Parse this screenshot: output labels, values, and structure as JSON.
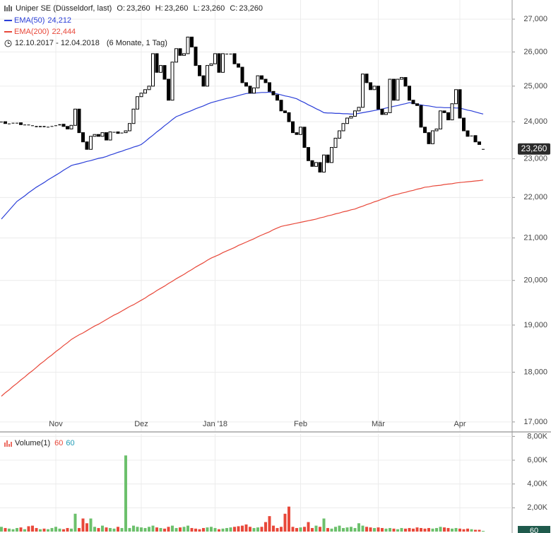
{
  "chart_data": [
    {
      "type": "candlestick",
      "title": "Uniper SE (Düsseldorf, last)",
      "quote": [
        {
          "label": "O:",
          "value": "23,260"
        },
        {
          "label": "H:",
          "value": "23,260"
        },
        {
          "label": "L:",
          "value": "23,260"
        },
        {
          "label": "C:",
          "value": "23,260"
        }
      ],
      "date_range": "12.10.2017 - 12.04.2018",
      "period": "(6 Monate, 1 Tag)",
      "categories": [
        null,
        null,
        null,
        null,
        null,
        null,
        null,
        null,
        null,
        null,
        null,
        null,
        null,
        null,
        "Nov",
        null,
        null,
        null,
        null,
        null,
        null,
        null,
        null,
        null,
        null,
        null,
        null,
        null,
        null,
        null,
        null,
        null,
        null,
        null,
        null,
        null,
        "Dez",
        null,
        null,
        null,
        null,
        null,
        null,
        null,
        null,
        null,
        null,
        null,
        null,
        null,
        null,
        null,
        null,
        null,
        null,
        "Jan '18",
        null,
        null,
        null,
        null,
        null,
        null,
        null,
        null,
        null,
        null,
        null,
        null,
        null,
        null,
        null,
        null,
        null,
        null,
        null,
        null,
        null,
        "Feb",
        null,
        null,
        null,
        null,
        null,
        null,
        null,
        null,
        null,
        null,
        null,
        null,
        null,
        null,
        null,
        null,
        null,
        null,
        null,
        "Mär",
        null,
        null,
        null,
        null,
        null,
        null,
        null,
        null,
        null,
        null,
        null,
        null,
        null,
        null,
        null,
        null,
        null,
        null,
        null,
        null,
        "Apr",
        null,
        null,
        null,
        null,
        null,
        null
      ],
      "open": [
        23.98,
        24.0,
        23.95,
        23.95,
        23.97,
        23.97,
        23.92,
        23.92,
        23.9,
        23.88,
        23.85,
        23.88,
        23.85,
        23.86,
        23.88,
        23.9,
        23.93,
        23.87,
        23.8,
        23.9,
        24.35,
        23.7,
        23.45,
        23.25,
        23.6,
        23.65,
        23.6,
        23.7,
        23.5,
        23.72,
        23.72,
        23.68,
        23.7,
        23.75,
        23.95,
        24.35,
        24.7,
        24.8,
        24.9,
        25.0,
        25.95,
        25.4,
        25.6,
        25.2,
        24.6,
        25.7,
        26.1,
        25.9,
        25.95,
        26.45,
        26.15,
        25.6,
        25.3,
        25.0,
        25.6,
        25.65,
        25.95,
        25.4,
        25.95,
        25.95,
        25.95,
        25.65,
        25.55,
        25.1,
        25.0,
        24.8,
        24.95,
        25.3,
        25.2,
        25.1,
        24.85,
        24.75,
        24.6,
        24.3,
        24.25,
        24.0,
        23.7,
        23.65,
        23.85,
        23.3,
        22.95,
        22.8,
        22.9,
        22.65,
        23.1,
        22.9,
        23.3,
        23.55,
        23.75,
        23.95,
        24.1,
        24.15,
        24.3,
        24.4,
        25.35,
        25.1,
        24.9,
        25.0,
        24.35,
        24.2,
        24.25,
        25.2,
        24.6,
        25.2,
        25.25,
        25.0,
        24.6,
        24.5,
        24.45,
        23.85,
        23.7,
        23.4,
        23.75,
        23.8,
        24.3,
        24.25,
        24.05,
        24.5,
        24.9,
        24.1,
        23.75,
        23.6,
        23.62,
        23.45,
        23.26
      ],
      "close": [
        24.0,
        23.95,
        23.95,
        23.97,
        23.97,
        23.92,
        23.92,
        23.9,
        23.88,
        23.85,
        23.88,
        23.85,
        23.86,
        23.88,
        23.9,
        23.93,
        23.87,
        23.8,
        23.9,
        24.35,
        23.7,
        23.45,
        23.25,
        23.6,
        23.65,
        23.6,
        23.7,
        23.5,
        23.72,
        23.72,
        23.68,
        23.7,
        23.75,
        23.95,
        24.35,
        24.7,
        24.8,
        24.9,
        25.0,
        25.95,
        25.4,
        25.6,
        25.2,
        24.6,
        25.7,
        26.1,
        25.9,
        25.95,
        26.45,
        26.15,
        25.6,
        25.3,
        25.0,
        25.6,
        25.65,
        25.95,
        25.4,
        25.95,
        25.95,
        25.95,
        25.65,
        25.55,
        25.1,
        25.0,
        24.8,
        24.95,
        25.3,
        25.2,
        25.1,
        24.85,
        24.75,
        24.6,
        24.3,
        24.25,
        24.0,
        23.7,
        23.65,
        23.85,
        23.3,
        22.95,
        22.8,
        22.9,
        22.65,
        23.1,
        22.9,
        23.3,
        23.55,
        23.75,
        23.95,
        24.1,
        24.15,
        24.3,
        24.4,
        25.35,
        25.1,
        24.9,
        25.0,
        24.35,
        24.2,
        24.25,
        25.2,
        24.6,
        25.2,
        25.25,
        25.0,
        24.6,
        24.5,
        24.45,
        23.85,
        23.7,
        23.4,
        23.75,
        23.8,
        24.3,
        24.25,
        24.05,
        24.5,
        24.9,
        24.1,
        23.75,
        23.6,
        23.62,
        23.45,
        23.38,
        23.26
      ],
      "up_color": "#ffffff",
      "down_color": "#000000",
      "series": [
        {
          "name": "EMA(50)",
          "color": "#2b3fd8",
          "value_label": "24,212",
          "values": [
            21.46,
            21.57,
            21.68,
            21.79,
            21.9,
            21.97,
            22.04,
            22.12,
            22.19,
            22.26,
            22.32,
            22.38,
            22.45,
            22.51,
            22.57,
            22.63,
            22.7,
            22.76,
            22.82,
            22.85,
            22.87,
            22.9,
            22.93,
            22.95,
            22.98,
            23.01,
            23.03,
            23.06,
            23.1,
            23.13,
            23.17,
            23.2,
            23.24,
            23.27,
            23.31,
            23.34,
            23.38,
            23.46,
            23.55,
            23.63,
            23.72,
            23.8,
            23.89,
            23.97,
            24.06,
            24.14,
            24.18,
            24.23,
            24.27,
            24.31,
            24.36,
            24.4,
            24.44,
            24.49,
            24.53,
            24.56,
            24.59,
            24.62,
            24.65,
            24.67,
            24.7,
            24.73,
            24.76,
            24.79,
            24.8,
            24.8,
            24.81,
            24.82,
            24.82,
            24.83,
            24.8,
            24.78,
            24.75,
            24.72,
            24.7,
            24.67,
            24.64,
            24.58,
            24.53,
            24.47,
            24.42,
            24.36,
            24.31,
            24.25,
            24.24,
            24.24,
            24.23,
            24.23,
            24.22,
            24.22,
            24.21,
            24.21,
            24.23,
            24.25,
            24.27,
            24.29,
            24.31,
            24.33,
            24.35,
            24.38,
            24.4,
            24.43,
            24.45,
            24.48,
            24.5,
            24.53,
            24.51,
            24.49,
            24.47,
            24.45,
            24.44,
            24.42,
            24.4,
            24.4,
            24.39,
            24.39,
            24.39,
            24.38,
            24.38,
            24.35,
            24.32,
            24.3,
            24.27,
            24.24,
            24.212
          ]
        },
        {
          "name": "EMA(200)",
          "color": "#e8483a",
          "value_label": "22,444",
          "values": [
            17.51,
            17.58,
            17.64,
            17.71,
            17.77,
            17.84,
            17.9,
            17.97,
            18.03,
            18.1,
            18.17,
            18.23,
            18.3,
            18.36,
            18.43,
            18.49,
            18.56,
            18.62,
            18.69,
            18.74,
            18.79,
            18.83,
            18.88,
            18.93,
            18.98,
            19.02,
            19.07,
            19.12,
            19.17,
            19.22,
            19.26,
            19.31,
            19.36,
            19.41,
            19.45,
            19.5,
            19.55,
            19.6,
            19.66,
            19.71,
            19.77,
            19.82,
            19.87,
            19.93,
            19.98,
            20.04,
            20.09,
            20.14,
            20.2,
            20.25,
            20.31,
            20.36,
            20.41,
            20.47,
            20.52,
            20.56,
            20.6,
            20.65,
            20.69,
            20.73,
            20.77,
            20.82,
            20.86,
            20.9,
            20.94,
            20.98,
            21.03,
            21.07,
            21.11,
            21.15,
            21.2,
            21.24,
            21.28,
            21.3,
            21.32,
            21.34,
            21.36,
            21.38,
            21.4,
            21.42,
            21.44,
            21.46,
            21.49,
            21.51,
            21.54,
            21.56,
            21.59,
            21.61,
            21.64,
            21.66,
            21.69,
            21.71,
            21.75,
            21.78,
            21.82,
            21.85,
            21.89,
            21.92,
            21.96,
            21.99,
            22.03,
            22.06,
            22.08,
            22.11,
            22.13,
            22.16,
            22.18,
            22.21,
            22.23,
            22.26,
            22.27,
            22.29,
            22.3,
            22.31,
            22.33,
            22.34,
            22.35,
            22.37,
            22.38,
            22.39,
            22.4,
            22.41,
            22.42,
            22.43,
            22.444
          ]
        }
      ],
      "last_label": "23,260",
      "ylim": [
        16.82,
        27.6
      ],
      "log_scale": true,
      "grid": true,
      "yticks": [
        {
          "value": 17,
          "label": "17,000"
        },
        {
          "value": 18,
          "label": "18,000"
        },
        {
          "value": 19,
          "label": "19,000"
        },
        {
          "value": 20,
          "label": "20,000"
        },
        {
          "value": 21,
          "label": "21,000"
        },
        {
          "value": 22,
          "label": "22,000"
        },
        {
          "value": 23,
          "label": "23,000"
        },
        {
          "value": 24,
          "label": "24,000"
        },
        {
          "value": 25,
          "label": "25,000"
        },
        {
          "value": 26,
          "label": "26,000"
        },
        {
          "value": 27,
          "label": "27,000"
        }
      ]
    },
    {
      "type": "bar",
      "title": "Volume(1)",
      "legend_values": [
        {
          "label": "60",
          "color": "#e8483a"
        },
        {
          "label": "60",
          "color": "#1f9bb5"
        }
      ],
      "values": [
        400,
        300,
        250,
        200,
        300,
        350,
        200,
        450,
        500,
        300,
        200,
        250,
        200,
        300,
        400,
        250,
        200,
        300,
        250,
        1500,
        300,
        1100,
        700,
        1100,
        400,
        300,
        500,
        350,
        300,
        250,
        400,
        300,
        6400,
        300,
        500,
        400,
        350,
        300,
        400,
        500,
        350,
        300,
        250,
        400,
        500,
        300,
        350,
        400,
        500,
        300,
        250,
        200,
        300,
        350,
        400,
        300,
        200,
        250,
        300,
        350,
        400,
        450,
        500,
        600,
        400,
        300,
        350,
        400,
        800,
        1300,
        500,
        300,
        400,
        1500,
        2100,
        400,
        300,
        350,
        400,
        800,
        300,
        500,
        400,
        1100,
        300,
        250,
        400,
        500,
        300,
        350,
        400,
        300,
        700,
        500,
        400,
        350,
        300,
        350,
        300,
        250,
        300,
        250,
        200,
        300,
        250,
        300,
        250,
        350,
        300,
        250,
        300,
        250,
        300,
        400,
        350,
        300,
        250,
        300,
        250,
        200,
        250,
        200,
        150,
        150,
        60
      ],
      "up_color": "#6cc06c",
      "down_color": "#e8483a",
      "last_label": "60",
      "ylim": [
        0,
        8200
      ],
      "grid": true,
      "yticks": [
        {
          "value": 2000,
          "label": "2,00K"
        },
        {
          "value": 4000,
          "label": "4,00K"
        },
        {
          "value": 6000,
          "label": "6,00K"
        },
        {
          "value": 8000,
          "label": "8,00K"
        }
      ]
    }
  ]
}
